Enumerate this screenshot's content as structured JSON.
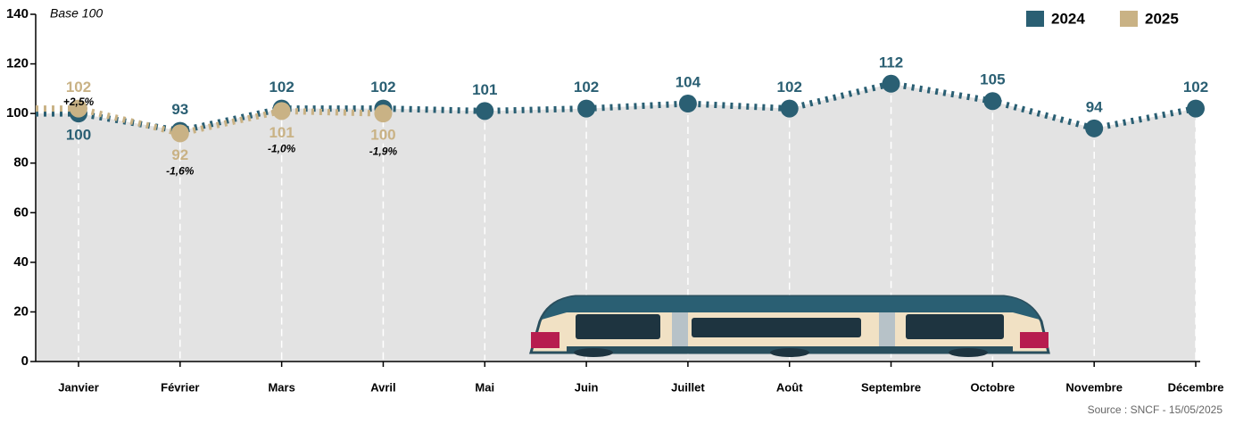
{
  "chart_data": {
    "type": "line",
    "subtitle": "Base 100",
    "source": "Source : SNCF - 15/05/2025",
    "categories": [
      "Janvier",
      "Février",
      "Mars",
      "Avril",
      "Mai",
      "Juin",
      "Juillet",
      "Août",
      "Septembre",
      "Octobre",
      "Novembre",
      "Décembre"
    ],
    "series": [
      {
        "name": "2024",
        "color": "#2a5f73",
        "values": [
          100,
          93,
          102,
          102,
          101,
          102,
          104,
          102,
          112,
          105,
          94,
          102
        ]
      },
      {
        "name": "2025",
        "color": "#c9b285",
        "values": [
          102,
          92,
          101,
          100,
          null,
          null,
          null,
          null,
          null,
          null,
          null,
          null
        ],
        "annotations": [
          "+2,5%",
          "-1,6%",
          "-1,0%",
          "-1,9%"
        ]
      }
    ],
    "ylim": [
      0,
      140
    ],
    "yticks": [
      0,
      20,
      40,
      60,
      80,
      100,
      120,
      140
    ],
    "area_color": "#e3e3e3",
    "legend": "top-right"
  }
}
